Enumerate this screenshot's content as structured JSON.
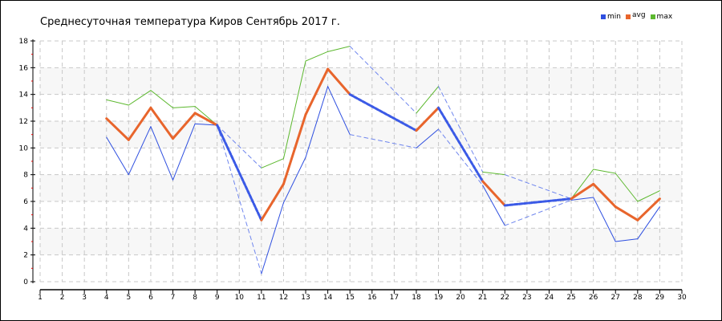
{
  "chart_data": {
    "type": "line",
    "title": "Среднесуточная температура Киров  Сентябрь 2017 г.",
    "xlabel": "",
    "ylabel": "",
    "xlim": [
      1,
      30
    ],
    "ylim": [
      0,
      18
    ],
    "x_ticks": [
      1,
      2,
      3,
      4,
      5,
      6,
      7,
      8,
      9,
      10,
      11,
      12,
      13,
      14,
      15,
      16,
      17,
      18,
      19,
      20,
      21,
      22,
      23,
      24,
      25,
      26,
      27,
      28,
      29,
      30
    ],
    "y_ticks": [
      0,
      2,
      4,
      6,
      8,
      10,
      12,
      14,
      16,
      18
    ],
    "grid": true,
    "legend_position": "top-right",
    "gap_style": "dashed blue connector",
    "x": [
      4,
      5,
      6,
      7,
      8,
      9,
      11,
      12,
      13,
      14,
      15,
      18,
      19,
      21,
      22,
      25,
      26,
      27,
      28,
      29
    ],
    "series": [
      {
        "name": "min",
        "color": "#2e4fe0",
        "values": [
          10.8,
          8.0,
          11.6,
          7.6,
          11.8,
          11.7,
          0.6,
          5.9,
          9.3,
          14.6,
          11.0,
          10.0,
          11.4,
          7.2,
          4.2,
          6.1,
          6.3,
          3.0,
          3.2,
          5.6
        ]
      },
      {
        "name": "avg",
        "color": "#e8652c",
        "values": [
          12.2,
          10.6,
          13.0,
          10.7,
          12.6,
          11.7,
          4.6,
          7.3,
          12.5,
          15.9,
          14.0,
          11.3,
          13.0,
          7.5,
          5.7,
          6.2,
          7.3,
          5.6,
          4.6,
          6.2
        ]
      },
      {
        "name": "max",
        "color": "#5cb82e",
        "values": [
          13.6,
          13.2,
          14.3,
          13.0,
          13.1,
          11.7,
          8.5,
          9.2,
          16.5,
          17.2,
          17.6,
          12.6,
          14.6,
          8.2,
          8.0,
          6.2,
          8.4,
          8.1,
          6.0,
          6.8
        ]
      }
    ]
  }
}
